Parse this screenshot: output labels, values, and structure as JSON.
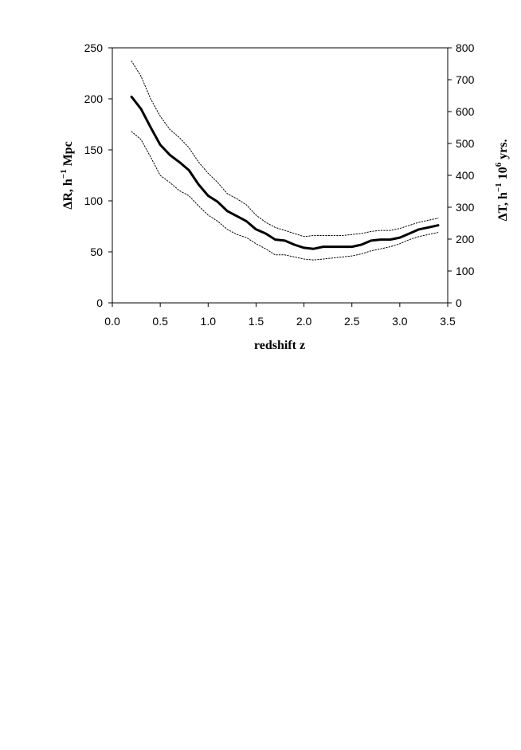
{
  "chart_data": {
    "type": "line",
    "xlabel": "redshift z",
    "ylabel_left": {
      "base": "ΔR,  h",
      "sup": "−1",
      "tail": " Mpc"
    },
    "ylabel_right": {
      "base": "ΔT,  h",
      "sup1": "−1",
      "mid": " 10",
      "sup2": "6",
      "tail": " yrs."
    },
    "xlim": [
      0.0,
      3.5
    ],
    "ylim_left": [
      0,
      250
    ],
    "ylim_right": [
      0,
      800
    ],
    "x_ticks": [
      "0.0",
      "0.5",
      "1.0",
      "1.5",
      "2.0",
      "2.5",
      "3.0",
      "3.5"
    ],
    "y_ticks_left": [
      "0",
      "50",
      "100",
      "150",
      "200",
      "250"
    ],
    "y_ticks_right": [
      "0",
      "100",
      "200",
      "300",
      "400",
      "500",
      "600",
      "700",
      "800"
    ],
    "grid": false,
    "series": [
      {
        "style": "solid",
        "x": [
          0.2,
          0.3,
          0.4,
          0.5,
          0.6,
          0.7,
          0.8,
          0.9,
          1.0,
          1.1,
          1.2,
          1.3,
          1.4,
          1.5,
          1.6,
          1.7,
          1.8,
          1.9,
          2.0,
          2.1,
          2.2,
          2.3,
          2.4,
          2.5,
          2.6,
          2.7,
          2.8,
          2.9,
          3.0,
          3.1,
          3.2,
          3.3,
          3.4
        ],
        "y": [
          202,
          190,
          172,
          155,
          145,
          138,
          130,
          116,
          105,
          99,
          90,
          85,
          80,
          72,
          68,
          62,
          61,
          57,
          54,
          53,
          55,
          55,
          55,
          55,
          57,
          61,
          62,
          62,
          64,
          68,
          72,
          74,
          76
        ]
      },
      {
        "style": "dotted",
        "x": [
          0.2,
          0.3,
          0.4,
          0.5,
          0.6,
          0.7,
          0.8,
          0.9,
          1.0,
          1.1,
          1.2,
          1.3,
          1.4,
          1.5,
          1.6,
          1.7,
          1.8,
          1.9,
          2.0,
          2.1,
          2.2,
          2.3,
          2.4,
          2.5,
          2.6,
          2.7,
          2.8,
          2.9,
          3.0,
          3.1,
          3.2,
          3.3,
          3.4
        ],
        "y": [
          237,
          222,
          200,
          183,
          170,
          162,
          152,
          138,
          127,
          118,
          107,
          102,
          96,
          86,
          79,
          74,
          71,
          68,
          65,
          66,
          66,
          66,
          66,
          67,
          68,
          70,
          71,
          71,
          73,
          76,
          79,
          81,
          83
        ]
      },
      {
        "style": "dotted",
        "x": [
          0.2,
          0.3,
          0.4,
          0.5,
          0.6,
          0.7,
          0.8,
          0.9,
          1.0,
          1.1,
          1.2,
          1.3,
          1.4,
          1.5,
          1.6,
          1.7,
          1.8,
          1.9,
          2.0,
          2.1,
          2.2,
          2.3,
          2.4,
          2.5,
          2.6,
          2.7,
          2.8,
          2.9,
          3.0,
          3.1,
          3.2,
          3.3,
          3.4
        ],
        "y": [
          168,
          160,
          143,
          125,
          118,
          110,
          105,
          95,
          86,
          80,
          72,
          67,
          64,
          58,
          53,
          47,
          47,
          45,
          43,
          42,
          43,
          44,
          45,
          46,
          48,
          51,
          53,
          55,
          58,
          62,
          65,
          67,
          69
        ]
      }
    ]
  }
}
